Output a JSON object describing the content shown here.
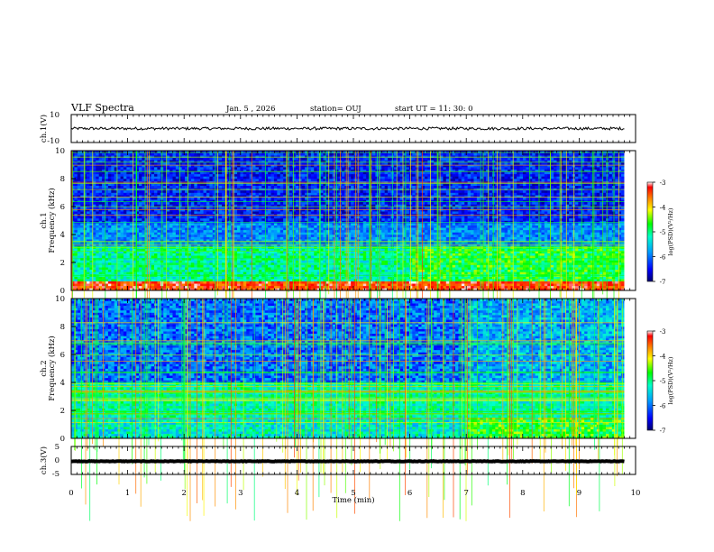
{
  "header": {
    "title": "VLF Spectra",
    "date": "Jan. 5 , 2026",
    "station": "station= OUJ",
    "start_time": "start  UT =  11: 30: 0"
  },
  "chart_data": [
    {
      "type": "line",
      "name": "ch1-voltage",
      "ylabel": "ch.1(V)",
      "ylim": [
        -10,
        10
      ],
      "yticks": [
        "10",
        "-10"
      ],
      "xlim": [
        0,
        10
      ],
      "series": [
        {
          "name": "ch.1",
          "baseline": 0,
          "noise_amplitude": 1,
          "end_min": 9.8
        }
      ]
    },
    {
      "type": "heatmap",
      "name": "ch1-spectrogram",
      "ylabel_top": "ch.1",
      "ylabel": "Frequency (kHz)",
      "ylim": [
        0,
        10
      ],
      "yticks": [
        "0",
        "2",
        "4",
        "6",
        "8",
        "10"
      ],
      "xlim": [
        0,
        10
      ],
      "data_end_min": 9.8
    },
    {
      "type": "heatmap",
      "name": "ch2-spectrogram",
      "ylabel_top": "ch.2",
      "ylabel": "Frequency (kHz)",
      "ylim": [
        0,
        10
      ],
      "yticks": [
        "0",
        "2",
        "4",
        "6",
        "8",
        "10"
      ],
      "xlim": [
        0,
        10
      ],
      "data_end_min": 9.8
    },
    {
      "type": "line",
      "name": "ch3-voltage",
      "ylabel": "ch.3(V)",
      "ylim": [
        -5,
        5
      ],
      "yticks": [
        "5",
        "0",
        "-5"
      ],
      "xlim": [
        0,
        10
      ],
      "series": [
        {
          "name": "ch.3",
          "baseline": -0.3,
          "noise_amplitude": 0.1,
          "end_min": 9.8
        }
      ]
    }
  ],
  "x_axis": {
    "label": "Time (min)",
    "ticks": [
      "0",
      "1",
      "2",
      "3",
      "4",
      "5",
      "6",
      "7",
      "8",
      "9",
      "10"
    ]
  },
  "colorbar": {
    "label": "log(PSD)(V²/Hz)",
    "range": [
      -7,
      -3
    ],
    "ticks": [
      "-3",
      "-4",
      "-5",
      "-6",
      "-7"
    ],
    "colors": [
      "#000070",
      "#0000ff",
      "#00a0ff",
      "#00ffcc",
      "#00ff00",
      "#ffff00",
      "#ff8000",
      "#ff0000",
      "#ffffff"
    ]
  }
}
